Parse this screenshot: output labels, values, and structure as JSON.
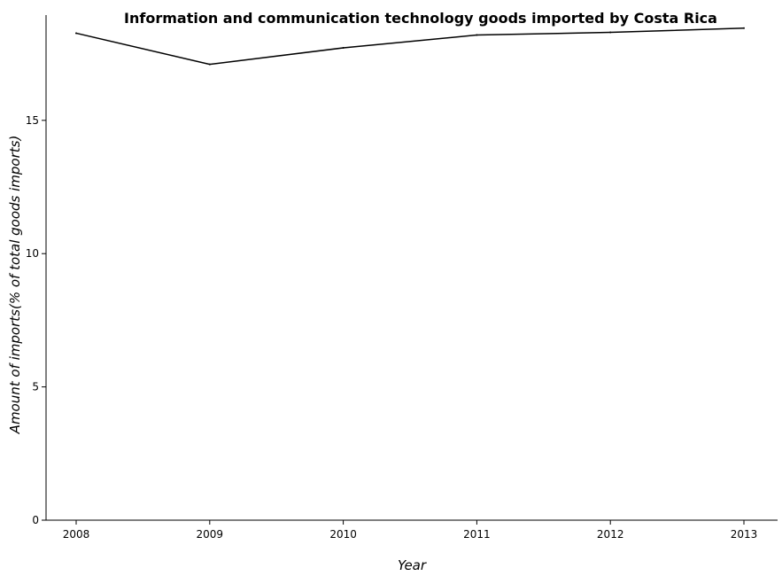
{
  "chart_data": {
    "type": "line",
    "title": "Information and communication technology goods imported by Costa Rica",
    "xlabel": "Year",
    "ylabel": "Amount of imports(% of total goods imports)",
    "categories": [
      "2008",
      "2009",
      "2010",
      "2011",
      "2012",
      "2013"
    ],
    "series": [
      {
        "values": [
          18.27,
          17.1,
          17.72,
          18.2,
          18.3,
          18.46
        ]
      }
    ],
    "ylim": [
      0,
      18.95
    ],
    "yticks": [
      0,
      5,
      10,
      15
    ],
    "ytick_labels": [
      "0",
      "5",
      "10",
      "15"
    ],
    "grid": false,
    "line_color": "#000000"
  }
}
